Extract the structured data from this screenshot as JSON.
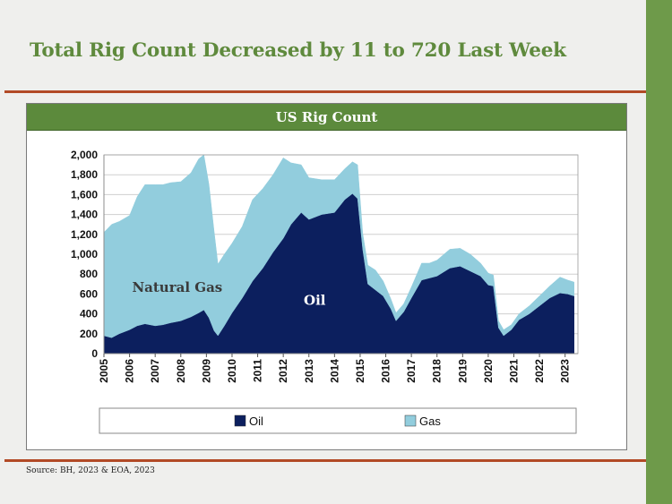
{
  "slide": {
    "title": "Total Rig Count Decreased by 11 to 720 Last Week",
    "source": "Source: BH, 2023 & EOA, 2023"
  },
  "colors": {
    "accent_green": "#5c8a3c",
    "rule_red": "#b24a26",
    "oil": "#0c1f5e",
    "gas": "#92cddd"
  },
  "chart_data": {
    "type": "area",
    "title": "US Rig Count",
    "stacked": true,
    "xlim": [
      2005,
      2023.5
    ],
    "ylim": [
      0,
      2000
    ],
    "y_ticks": [
      0,
      200,
      400,
      600,
      800,
      1000,
      1200,
      1400,
      1600,
      1800,
      2000
    ],
    "y_tick_labels": [
      "0",
      "200",
      "400",
      "600",
      "800",
      "1,000",
      "1,200",
      "1,400",
      "1,600",
      "1,800",
      "2,000"
    ],
    "x_ticks": [
      2005,
      2006,
      2007,
      2008,
      2009,
      2010,
      2011,
      2012,
      2013,
      2014,
      2015,
      2016,
      2017,
      2018,
      2019,
      2020,
      2021,
      2022,
      2023
    ],
    "x_tick_labels": [
      "2005",
      "2006",
      "2007",
      "2008",
      "2009",
      "2010",
      "2011",
      "2012",
      "2013",
      "2014",
      "2015",
      "2016",
      "2017",
      "2018",
      "2019",
      "2020",
      "2021",
      "2022",
      "2023"
    ],
    "grid": true,
    "legend_position": "bottom",
    "annotations": [
      {
        "text": "Natural Gas",
        "x": 2006.1,
        "y": 620,
        "series": "Gas"
      },
      {
        "text": "Oil",
        "x": 2012.8,
        "y": 490,
        "series": "Oil"
      }
    ],
    "x": [
      2005.0,
      2005.3,
      2005.6,
      2006.0,
      2006.3,
      2006.6,
      2007.0,
      2007.3,
      2007.6,
      2008.0,
      2008.4,
      2008.7,
      2008.9,
      2009.1,
      2009.3,
      2009.45,
      2009.7,
      2010.0,
      2010.4,
      2010.8,
      2011.2,
      2011.6,
      2012.0,
      2012.3,
      2012.7,
      2013.0,
      2013.5,
      2014.0,
      2014.4,
      2014.7,
      2014.9,
      2015.1,
      2015.3,
      2015.6,
      2015.9,
      2016.2,
      2016.4,
      2016.7,
      2017.0,
      2017.4,
      2017.7,
      2018.0,
      2018.5,
      2018.9,
      2019.3,
      2019.7,
      2020.0,
      2020.2,
      2020.4,
      2020.6,
      2020.9,
      2021.2,
      2021.6,
      2022.0,
      2022.4,
      2022.8,
      2023.1,
      2023.35
    ],
    "series": [
      {
        "name": "Oil",
        "color": "#0c1f5e",
        "values": [
          180,
          160,
          200,
          240,
          280,
          300,
          280,
          290,
          310,
          330,
          370,
          410,
          440,
          360,
          230,
          180,
          280,
          410,
          560,
          730,
          860,
          1020,
          1160,
          1300,
          1420,
          1350,
          1400,
          1420,
          1550,
          1610,
          1560,
          1050,
          700,
          640,
          580,
          450,
          330,
          420,
          560,
          740,
          760,
          780,
          860,
          880,
          830,
          780,
          690,
          680,
          260,
          180,
          240,
          340,
          400,
          480,
          560,
          610,
          600,
          580
        ]
      },
      {
        "name": "Gas",
        "color": "#92cddd",
        "values": [
          1040,
          1140,
          1130,
          1150,
          1300,
          1400,
          1420,
          1410,
          1410,
          1400,
          1450,
          1550,
          1560,
          1340,
          1000,
          720,
          720,
          700,
          720,
          820,
          800,
          780,
          810,
          620,
          480,
          420,
          350,
          330,
          310,
          320,
          340,
          160,
          190,
          200,
          150,
          100,
          80,
          80,
          110,
          170,
          150,
          160,
          190,
          180,
          170,
          130,
          120,
          110,
          70,
          60,
          50,
          60,
          80,
          100,
          120,
          160,
          140,
          140
        ]
      }
    ],
    "legend": [
      "Oil",
      "Gas"
    ]
  }
}
